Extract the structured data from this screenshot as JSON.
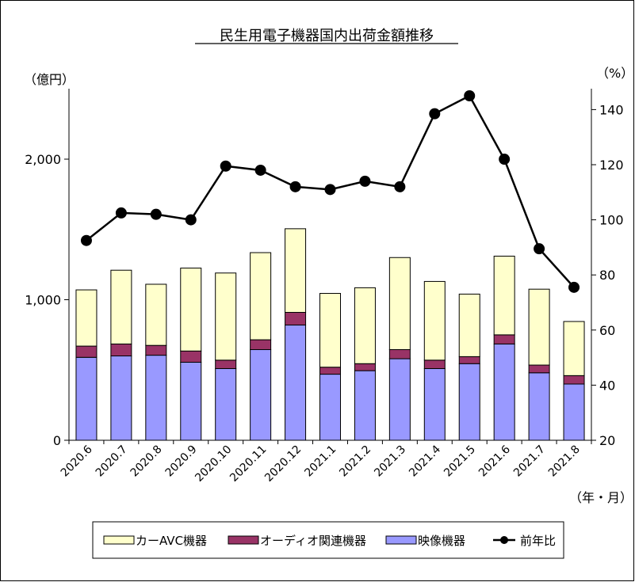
{
  "chart_data": {
    "type": "bar",
    "title": "民生用電子機器国内出荷金額推移",
    "y_left_unit": "（億円）",
    "y_right_unit": "（%）",
    "x_unit": "（年・月）",
    "ylim_left": [
      0,
      2500
    ],
    "yticks_left": [
      0,
      1000,
      2000
    ],
    "ytick_labels_left": [
      "0",
      "1,000",
      "2,000"
    ],
    "ylim_right": [
      20,
      150
    ],
    "yticks_right": [
      20,
      40,
      60,
      80,
      100,
      120,
      140
    ],
    "ytick_labels_right": [
      "20",
      "40",
      "60",
      "80",
      "100",
      "120",
      "140"
    ],
    "categories": [
      "2020.6",
      "2020.7",
      "2020.8",
      "2020.9",
      "2020.10",
      "2020.11",
      "2020.12",
      "2021.1",
      "2021.2",
      "2021.3",
      "2021.4",
      "2021.5",
      "2021.6",
      "2021.7",
      "2021.8"
    ],
    "series": [
      {
        "name": "映像機器",
        "kind": "bar",
        "color": "#9999ff",
        "values": [
          590,
          600,
          605,
          555,
          510,
          645,
          820,
          470,
          495,
          580,
          510,
          545,
          685,
          480,
          400
        ]
      },
      {
        "name": "オーディオ関連機器",
        "kind": "bar",
        "color": "#993366",
        "values": [
          80,
          85,
          70,
          80,
          60,
          70,
          90,
          50,
          50,
          65,
          60,
          50,
          65,
          55,
          60
        ]
      },
      {
        "name": "カーAVC機器",
        "kind": "bar",
        "color": "#ffffcc",
        "values": [
          400,
          525,
          435,
          590,
          620,
          620,
          595,
          525,
          540,
          655,
          560,
          445,
          560,
          540,
          385
        ]
      },
      {
        "name": "前年比",
        "kind": "line",
        "color": "#000000",
        "axis": "right",
        "values": [
          92.5,
          102.5,
          102,
          100,
          119.5,
          118,
          112,
          111,
          114,
          112,
          138.5,
          145,
          122,
          89.5,
          75.5
        ]
      }
    ],
    "legend_position": "bottom",
    "grid": false
  }
}
